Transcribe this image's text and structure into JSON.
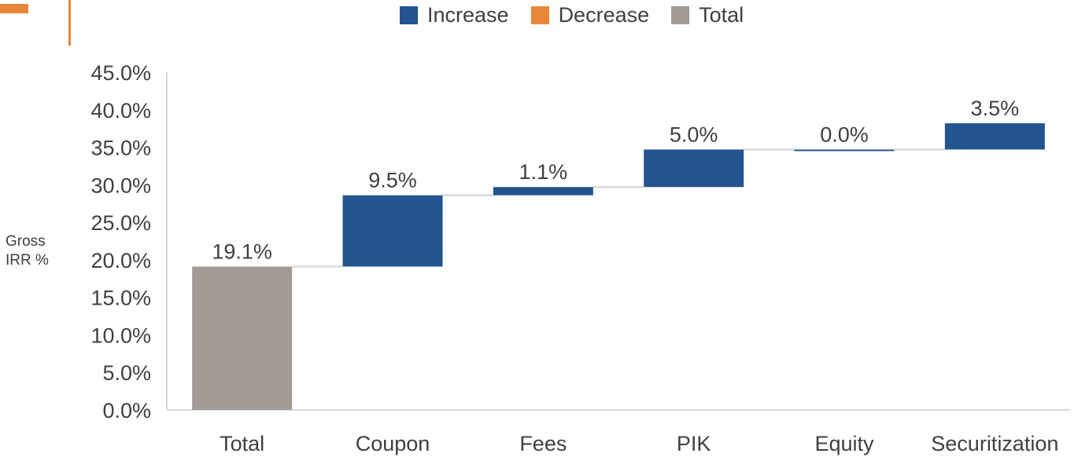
{
  "chart_data": {
    "type": "bar",
    "subtype": "waterfall",
    "ylabel_lines": [
      "Gross",
      "IRR %"
    ],
    "xlabel": "",
    "ylim": [
      0,
      45
    ],
    "yticks": [
      "0.0%",
      "5.0%",
      "10.0%",
      "15.0%",
      "20.0%",
      "25.0%",
      "30.0%",
      "35.0%",
      "40.0%",
      "45.0%"
    ],
    "categories": [
      "Total",
      "Coupon",
      "Fees",
      "PIK",
      "Equity",
      "Securitization"
    ],
    "bars": [
      {
        "category": "Total",
        "kind": "total",
        "start": 0,
        "end": 19.1,
        "label": "19.1%"
      },
      {
        "category": "Coupon",
        "kind": "increase",
        "start": 19.1,
        "end": 28.6,
        "label": "9.5%"
      },
      {
        "category": "Fees",
        "kind": "increase",
        "start": 28.6,
        "end": 29.7,
        "label": "1.1%"
      },
      {
        "category": "PIK",
        "kind": "increase",
        "start": 29.7,
        "end": 34.7,
        "label": "5.0%"
      },
      {
        "category": "Equity",
        "kind": "increase",
        "start": 34.7,
        "end": 34.7,
        "label": "0.0%"
      },
      {
        "category": "Securitization",
        "kind": "increase",
        "start": 34.7,
        "end": 38.2,
        "label": "3.5%"
      }
    ],
    "legend": [
      {
        "name": "Increase",
        "color": "#23548F"
      },
      {
        "name": "Decrease",
        "color": "#E8873A"
      },
      {
        "name": "Total",
        "color": "#A29A94"
      }
    ],
    "legend_position": "top",
    "grid": false,
    "connector_color": "#D9D9D9"
  }
}
